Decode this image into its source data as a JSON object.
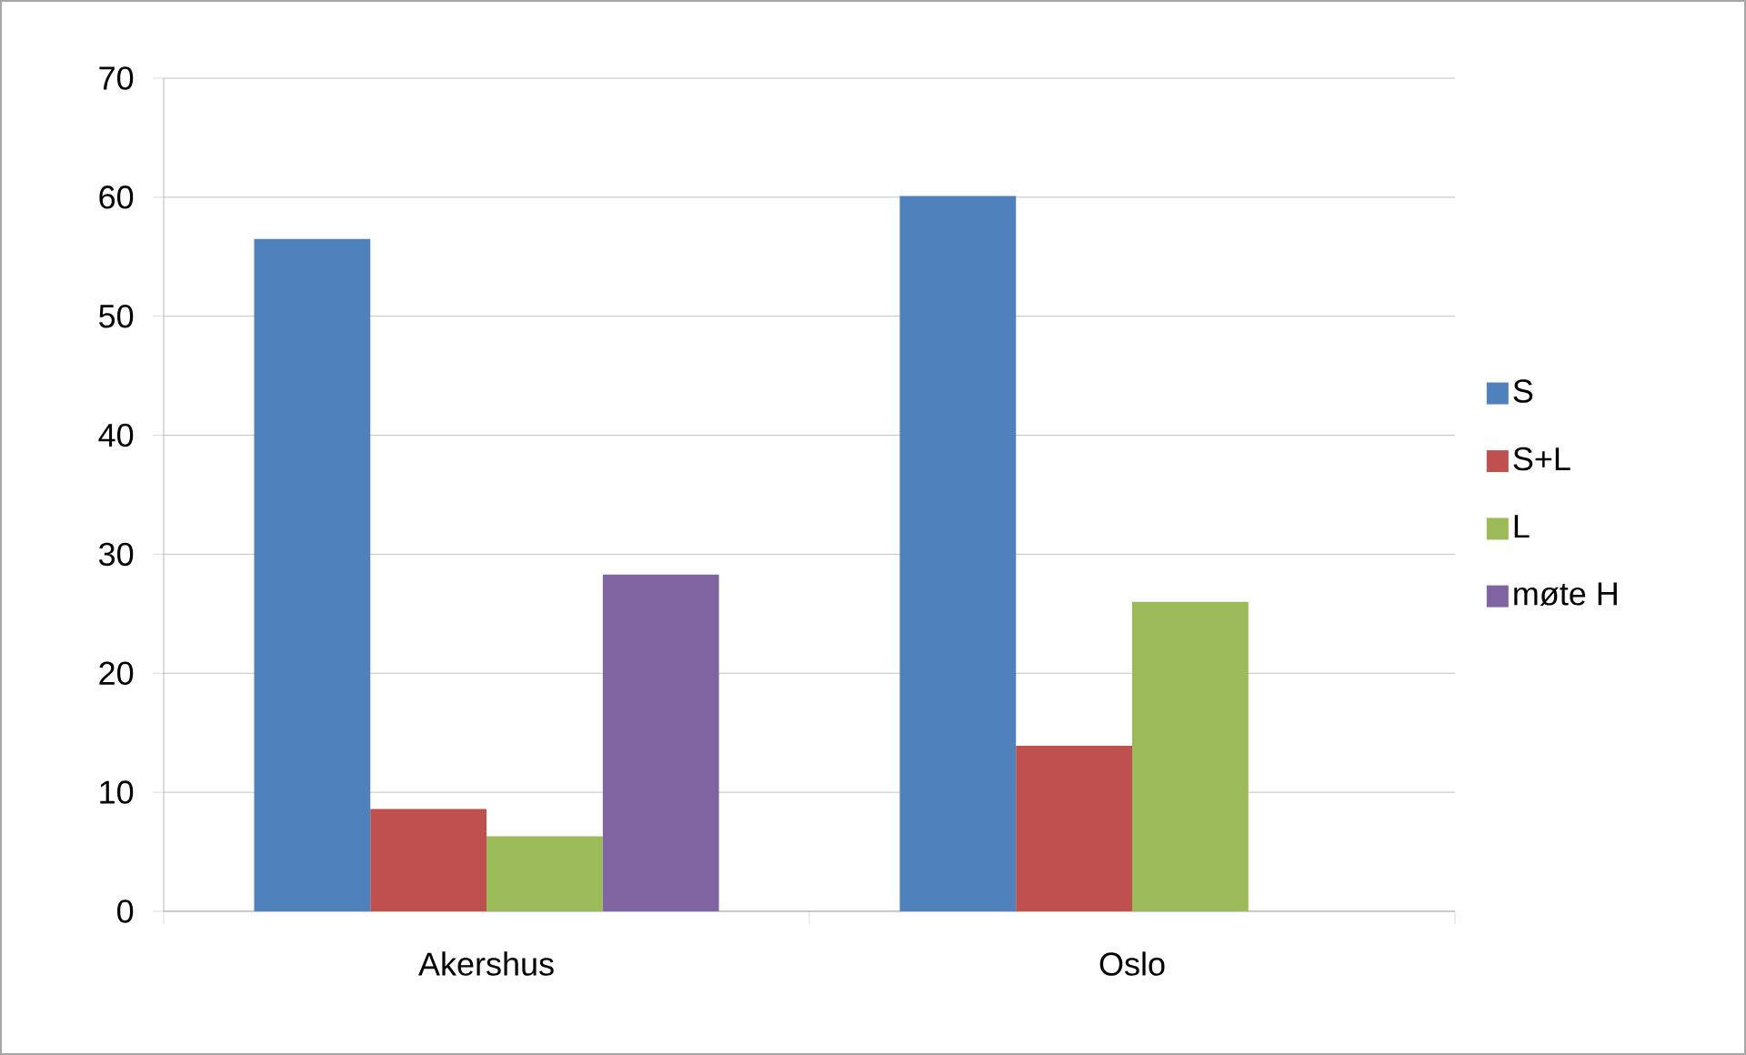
{
  "chart_data": {
    "type": "bar",
    "categories": [
      "Akershus",
      "Oslo"
    ],
    "series": [
      {
        "name": "S",
        "color": "#4f81bd",
        "values": [
          56.5,
          60.1
        ]
      },
      {
        "name": "S+L",
        "color": "#c0504d",
        "values": [
          8.6,
          13.9
        ]
      },
      {
        "name": "L",
        "color": "#9bbb59",
        "values": [
          6.3,
          26.0
        ]
      },
      {
        "name": "møte H",
        "color": "#8064a2",
        "values": [
          28.3,
          null
        ]
      }
    ],
    "ylim": [
      0,
      70
    ],
    "yticks": [
      0,
      10,
      20,
      30,
      40,
      50,
      60,
      70
    ],
    "grid": "y",
    "legend": "right"
  }
}
